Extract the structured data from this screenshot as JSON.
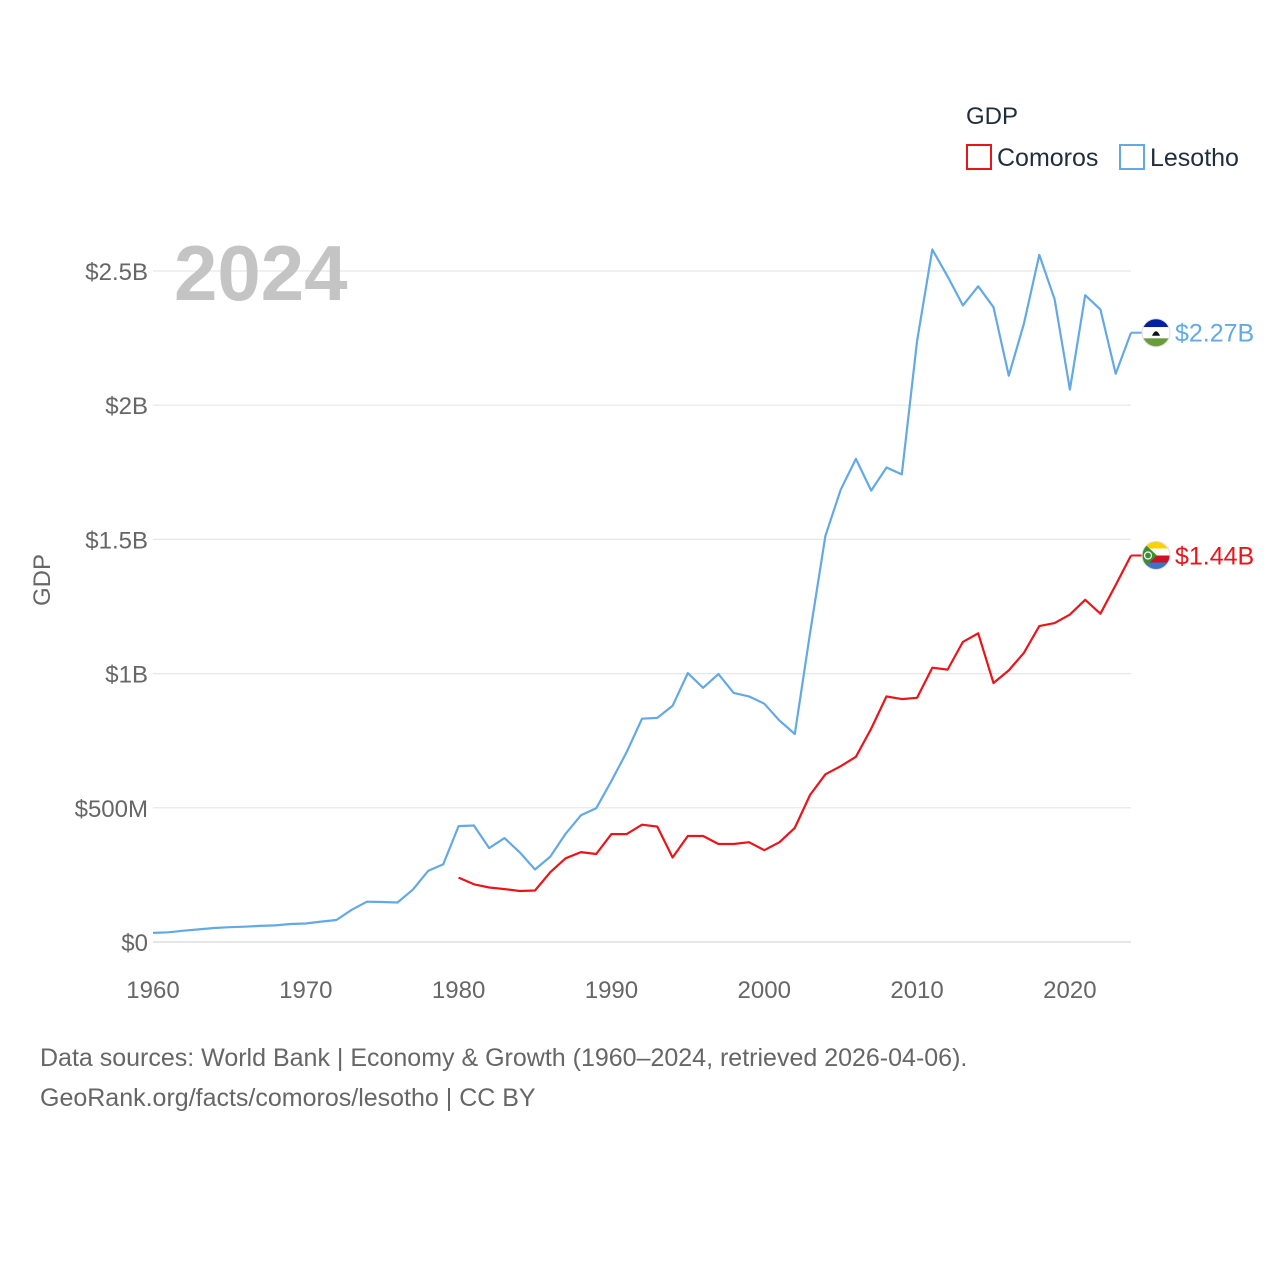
{
  "chart_data": {
    "type": "line",
    "year_label": "2024",
    "ylabel": "GDP",
    "legend": {
      "title": "GDP",
      "position": "top-right"
    },
    "xlim": [
      1960,
      2024
    ],
    "ylim": [
      0,
      2.5
    ],
    "y_unit": "billions USD",
    "x_ticks": [
      1960,
      1970,
      1980,
      1990,
      2000,
      2010,
      2020
    ],
    "y_ticks": [
      {
        "value": 0,
        "label": "$0"
      },
      {
        "value": 0.5,
        "label": "$500M"
      },
      {
        "value": 1.0,
        "label": "$1B"
      },
      {
        "value": 1.5,
        "label": "$1.5B"
      },
      {
        "value": 2.0,
        "label": "$2B"
      },
      {
        "value": 2.5,
        "label": "$2.5B"
      }
    ],
    "series": [
      {
        "name": "Comoros",
        "color": "#e8151b",
        "end_label": "$1.44B",
        "flag": "comoros-flag",
        "x": [
          1980,
          1981,
          1982,
          1983,
          1984,
          1985,
          1986,
          1987,
          1988,
          1989,
          1990,
          1991,
          1992,
          1993,
          1994,
          1995,
          1996,
          1997,
          1998,
          1999,
          2000,
          2001,
          2002,
          2003,
          2004,
          2005,
          2006,
          2007,
          2008,
          2009,
          2010,
          2011,
          2012,
          2013,
          2014,
          2015,
          2016,
          2017,
          2018,
          2019,
          2020,
          2021,
          2022,
          2023,
          2024
        ],
        "values": [
          0.24,
          0.215,
          0.203,
          0.197,
          0.19,
          0.192,
          0.26,
          0.312,
          0.335,
          0.328,
          0.402,
          0.402,
          0.437,
          0.43,
          0.315,
          0.395,
          0.395,
          0.365,
          0.365,
          0.372,
          0.342,
          0.372,
          0.425,
          0.548,
          0.625,
          0.655,
          0.69,
          0.795,
          0.915,
          0.905,
          0.91,
          1.022,
          1.015,
          1.118,
          1.15,
          0.965,
          1.012,
          1.078,
          1.177,
          1.188,
          1.22,
          1.275,
          1.223,
          1.33,
          1.44
        ]
      },
      {
        "name": "Lesotho",
        "color": "#63a9e5",
        "end_label": "$2.27B",
        "flag": "lesotho-flag",
        "x": [
          1960,
          1961,
          1962,
          1963,
          1964,
          1965,
          1966,
          1967,
          1968,
          1969,
          1970,
          1971,
          1972,
          1973,
          1974,
          1975,
          1976,
          1977,
          1978,
          1979,
          1980,
          1981,
          1982,
          1983,
          1984,
          1985,
          1986,
          1987,
          1988,
          1989,
          1990,
          1991,
          1992,
          1993,
          1994,
          1995,
          1996,
          1997,
          1998,
          1999,
          2000,
          2001,
          2002,
          2003,
          2004,
          2005,
          2006,
          2007,
          2008,
          2009,
          2010,
          2011,
          2012,
          2013,
          2014,
          2015,
          2016,
          2017,
          2018,
          2019,
          2020,
          2021,
          2022,
          2023,
          2024
        ],
        "values": [
          0.034,
          0.036,
          0.042,
          0.047,
          0.052,
          0.055,
          0.057,
          0.06,
          0.062,
          0.067,
          0.069,
          0.076,
          0.082,
          0.12,
          0.15,
          0.149,
          0.147,
          0.195,
          0.265,
          0.29,
          0.432,
          0.434,
          0.35,
          0.387,
          0.334,
          0.27,
          0.318,
          0.403,
          0.472,
          0.498,
          0.6,
          0.708,
          0.832,
          0.835,
          0.88,
          1.002,
          0.947,
          0.998,
          0.928,
          0.915,
          0.888,
          0.825,
          0.775,
          1.152,
          1.513,
          1.685,
          1.8,
          1.682,
          1.768,
          1.742,
          2.24,
          2.58,
          2.48,
          2.372,
          2.443,
          2.365,
          2.11,
          2.305,
          2.56,
          2.395,
          2.058,
          2.41,
          2.357,
          2.117,
          2.27
        ]
      }
    ]
  },
  "footer": {
    "line1": "Data sources: World Bank | Economy & Growth (1960–2024, retrieved 2026-04-06).",
    "line2": "GeoRank.org/facts/comoros/lesotho | CC BY"
  }
}
